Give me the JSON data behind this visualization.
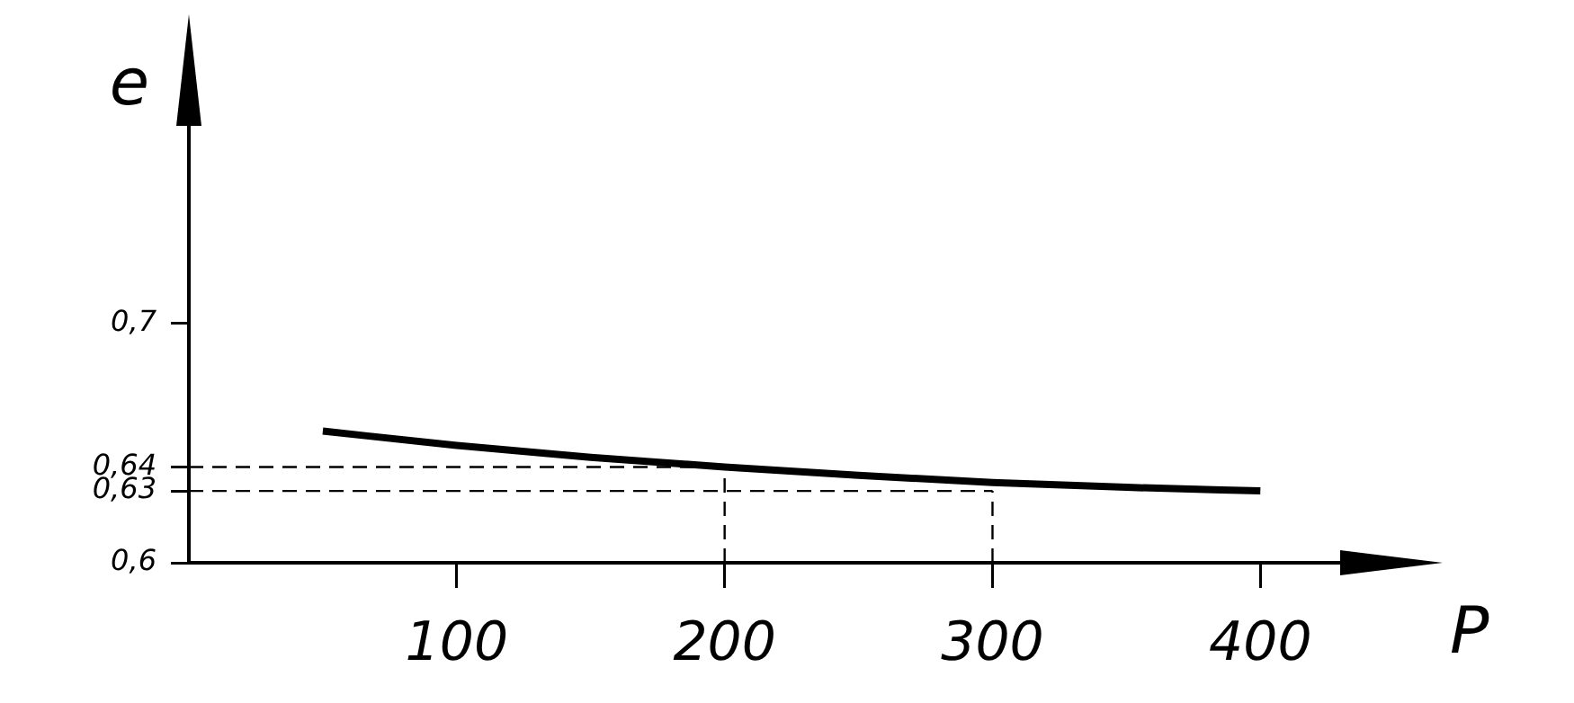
{
  "chart_data": {
    "type": "line",
    "xlabel": "P",
    "ylabel": "e",
    "x": [
      50,
      100,
      150,
      200,
      250,
      300,
      350,
      400
    ],
    "series": [
      {
        "color": "#000000",
        "values": [
          0.655,
          0.649,
          0.644,
          0.64,
          0.6365,
          0.6335,
          0.6315,
          0.63
        ]
      }
    ],
    "xlim": [
      0,
      460
    ],
    "xticks": [
      100,
      200,
      300,
      400
    ],
    "ylim": [
      0.6,
      0.82
    ],
    "yticks": [
      {
        "value": 0.6,
        "label": "0,6"
      },
      {
        "value": 0.63,
        "label": "0,63"
      },
      {
        "value": 0.64,
        "label": "0,64"
      },
      {
        "value": 0.7,
        "label": "0,7"
      }
    ],
    "ref_lines": [
      {
        "axis": "y",
        "value": 0.64,
        "line_style": "dashed"
      },
      {
        "axis": "y",
        "value": 0.63,
        "line_style": "dashed"
      },
      {
        "axis": "x",
        "value": 200,
        "line_style": "dashed"
      },
      {
        "axis": "x",
        "value": 300,
        "line_style": "dashed"
      }
    ],
    "grid": false,
    "legend": false,
    "marker": "none",
    "line_style": "solid"
  }
}
